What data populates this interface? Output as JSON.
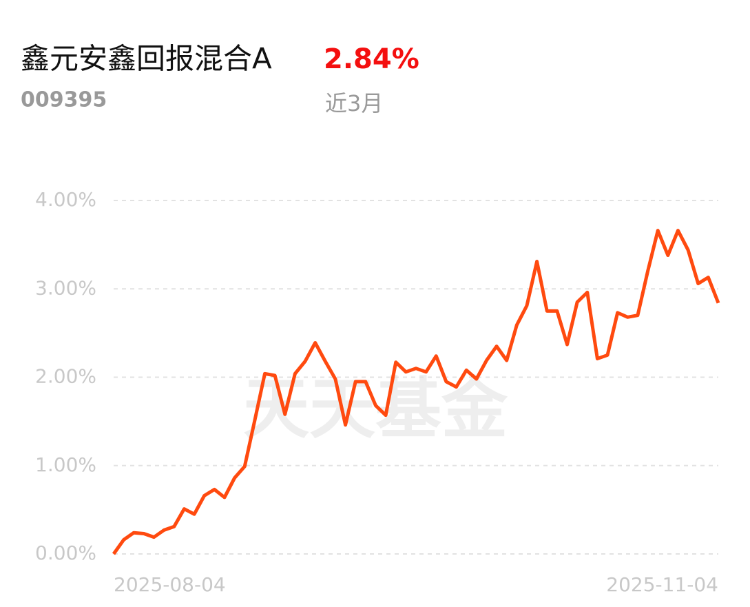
{
  "chart_data": {
    "type": "line",
    "title": "鑫元安鑫回报混合A",
    "return_label": "2.84%",
    "code": "009395",
    "period": "近3月",
    "watermark": "天天基金",
    "categories": [
      "2025-08-04",
      null,
      null,
      null,
      null,
      null,
      null,
      null,
      null,
      null,
      null,
      null,
      null,
      null,
      null,
      null,
      null,
      null,
      null,
      null,
      null,
      null,
      null,
      null,
      null,
      null,
      null,
      null,
      null,
      null,
      null,
      null,
      null,
      null,
      null,
      null,
      null,
      null,
      null,
      null,
      null,
      null,
      null,
      null,
      null,
      null,
      null,
      null,
      null,
      null,
      null,
      null,
      null,
      null,
      null,
      null,
      null,
      null,
      null,
      null,
      "2025-11-04"
    ],
    "series": [
      {
        "name": "鑫元安鑫回报混合A",
        "color": "#ff4a0f",
        "values": [
          0,
          0.16,
          0.24,
          0.23,
          0.19,
          0.27,
          0.31,
          0.51,
          0.45,
          0.66,
          0.73,
          0.64,
          0.86,
          0.99,
          1.51,
          2.04,
          2.02,
          1.58,
          2.04,
          2.18,
          2.39,
          2.18,
          1.98,
          1.46,
          1.95,
          1.95,
          1.68,
          1.57,
          2.17,
          2.06,
          2.1,
          2.06,
          2.24,
          1.95,
          1.89,
          2.08,
          1.98,
          2.19,
          2.35,
          2.19,
          2.59,
          2.81,
          3.31,
          2.75,
          2.75,
          2.37,
          2.85,
          2.96,
          2.21,
          2.25,
          2.73,
          2.68,
          2.7,
          3.2,
          3.66,
          3.38,
          3.66,
          3.44,
          3.06,
          3.13,
          2.84
        ]
      }
    ],
    "ylim": [
      0,
      4
    ],
    "yticks": [
      {
        "value": 0,
        "label": "0.00%"
      },
      {
        "value": 1,
        "label": "1.00%"
      },
      {
        "value": 2,
        "label": "2.00%"
      },
      {
        "value": 3,
        "label": "3.00%"
      },
      {
        "value": 4,
        "label": "4.00%"
      }
    ],
    "grid": true
  }
}
